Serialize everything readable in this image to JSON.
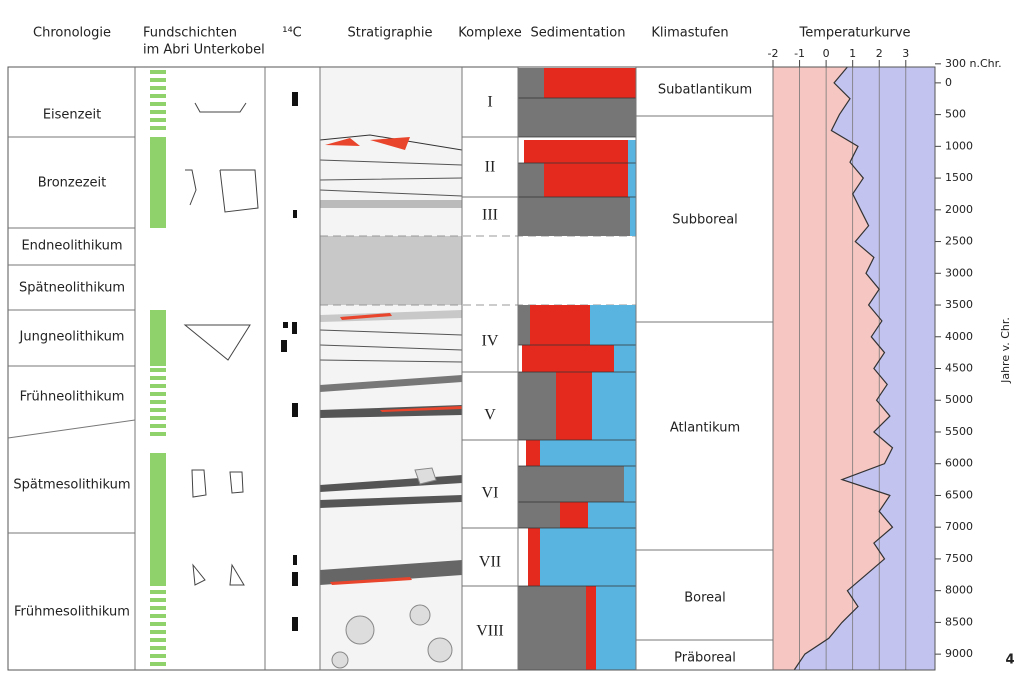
{
  "headers": {
    "chronologie": "Chronologie",
    "fundschichten": [
      "Fundschichten",
      "im Abri Unterkobel"
    ],
    "c14": "¹⁴C",
    "stratigraphie": "Stratigraphie",
    "komplexe": "Komplexe",
    "sedimentation": "Sedimentation",
    "klimastufen": "Klimastufen",
    "temperaturkurve": "Temperaturkurve"
  },
  "chronologie": [
    "Eisenzeit",
    "Bronzezeit",
    "Endneolithikum",
    "Spätneolithikum",
    "Jungneolithikum",
    "Frühneolithikum",
    "Spätmesolithikum",
    "Frühmesolithikum"
  ],
  "komplexe": [
    "I",
    "II",
    "III",
    "IV",
    "V",
    "VI",
    "VII",
    "VIII"
  ],
  "klimastufen": [
    "Subatlantikum",
    "Subboreal",
    "Atlantikum",
    "Boreal",
    "Präboreal"
  ],
  "chart_data": {
    "type": "line",
    "xlim": [
      -2,
      4.1
    ],
    "xticks": [
      -2,
      -1,
      0,
      1,
      2,
      3
    ],
    "ylim": [
      -250,
      9250
    ],
    "yticks": [
      {
        "value": -300,
        "label": "300 n.Chr."
      },
      0,
      500,
      1000,
      1500,
      2000,
      2500,
      3000,
      3500,
      4000,
      4500,
      5000,
      5500,
      6000,
      6500,
      7000,
      7500,
      8000,
      8500,
      9000
    ],
    "ylabel": "Jahre v. Chr.",
    "years": [
      -250,
      0,
      250,
      500,
      750,
      1000,
      1250,
      1500,
      1750,
      2000,
      2250,
      2500,
      2750,
      3000,
      3250,
      3500,
      3750,
      4000,
      4250,
      4500,
      4750,
      5000,
      5250,
      5500,
      5750,
      6000,
      6250,
      6500,
      6750,
      7000,
      7250,
      7500,
      7750,
      8000,
      8250,
      8500,
      8750,
      9000,
      9250
    ],
    "values": [
      0.8,
      0.3,
      0.9,
      0.5,
      0.2,
      1.2,
      0.9,
      1.4,
      1.0,
      1.3,
      1.6,
      1.1,
      1.8,
      1.5,
      2.0,
      1.6,
      2.1,
      1.7,
      2.2,
      1.8,
      2.3,
      1.9,
      2.4,
      1.8,
      2.5,
      2.2,
      0.6,
      2.4,
      2.0,
      2.5,
      1.8,
      2.2,
      1.5,
      0.8,
      1.2,
      0.6,
      0.1,
      -0.8,
      -1.2
    ]
  },
  "figure_number": "4"
}
